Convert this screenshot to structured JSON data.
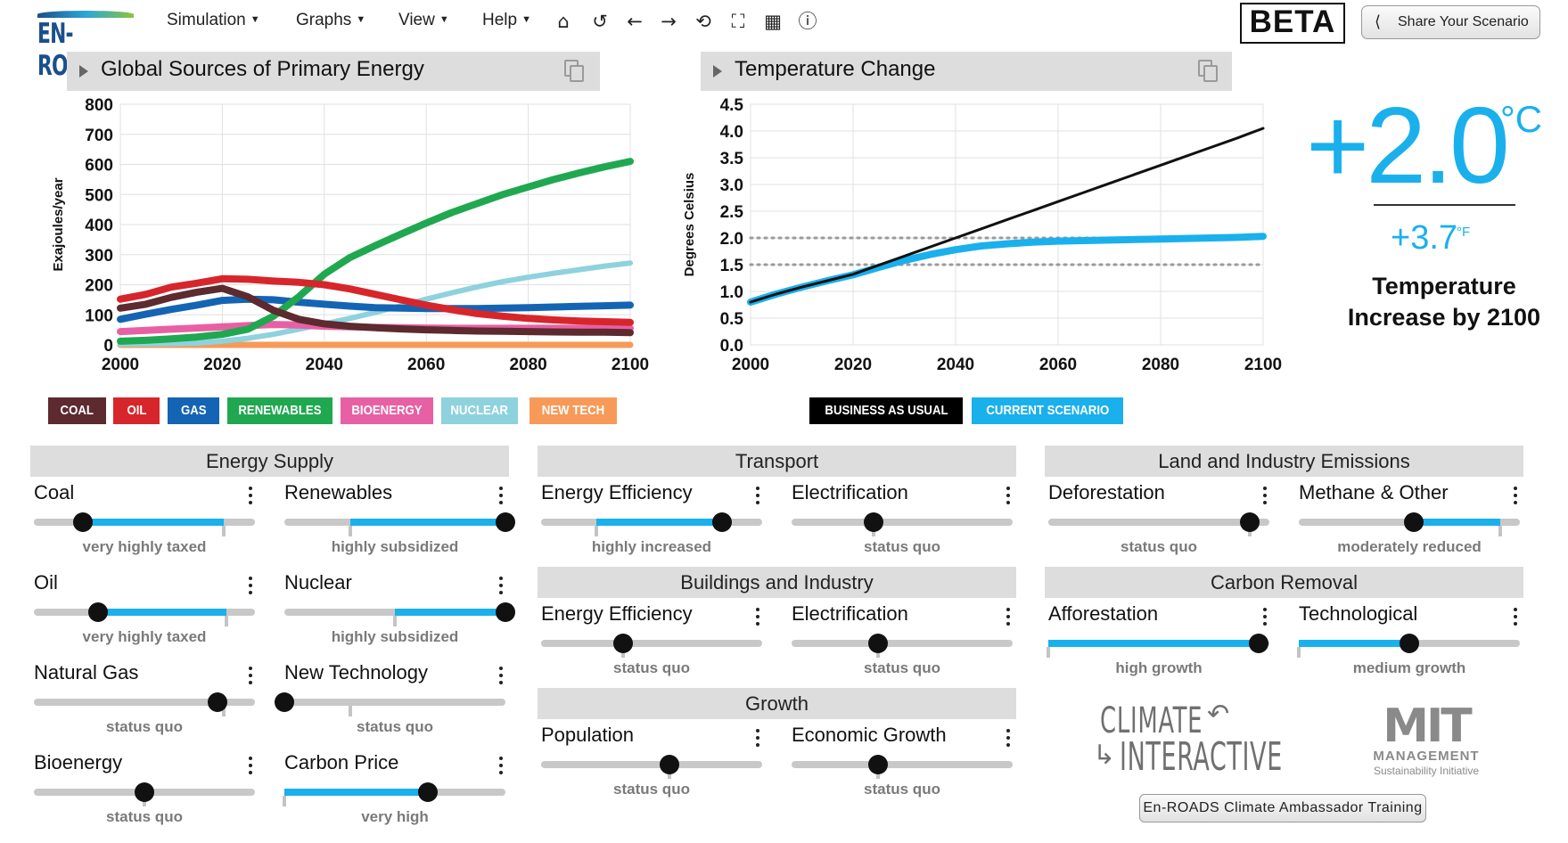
{
  "app": {
    "logo_text": "EN-ROADS",
    "beta_label": "BETA",
    "share_label": "Share Your Scenario",
    "menus": [
      {
        "label": "Simulation"
      },
      {
        "label": "Graphs"
      },
      {
        "label": "View"
      },
      {
        "label": "Help"
      }
    ],
    "toolbar_icons": [
      "home-icon",
      "undo-icon",
      "back-icon",
      "forward-icon",
      "redo-icon",
      "fullscreen-icon",
      "table-icon",
      "info-icon"
    ]
  },
  "colors": {
    "accent_blue": "#1ab0ec",
    "header_gray": "#dddddd",
    "coal": "#5c2a2f",
    "oil": "#d7262b",
    "gas": "#1464b4",
    "renewables": "#20a850",
    "bioenergy": "#e860a4",
    "nuclear": "#8ed2de",
    "new_tech": "#f79a58"
  },
  "graphs": [
    {
      "title": "Global Sources of Primary Energy"
    },
    {
      "title": "Temperature Change"
    }
  ],
  "chart_data": [
    {
      "type": "line",
      "title": "Global Sources of Primary Energy",
      "xlabel": "",
      "ylabel": "Exajoules/year",
      "xlim": [
        2000,
        2100
      ],
      "ylim": [
        0,
        800
      ],
      "xticks": [
        2000,
        2020,
        2040,
        2060,
        2080,
        2100
      ],
      "yticks": [
        0,
        100,
        200,
        300,
        400,
        500,
        600,
        700,
        800
      ],
      "grid": true,
      "x": [
        2000,
        2005,
        2010,
        2015,
        2020,
        2025,
        2030,
        2035,
        2040,
        2045,
        2050,
        2055,
        2060,
        2065,
        2070,
        2075,
        2080,
        2085,
        2090,
        2095,
        2100
      ],
      "series": [
        {
          "name": "COAL",
          "color": "#5c2a2f",
          "values": [
            122,
            135,
            158,
            175,
            188,
            160,
            115,
            85,
            70,
            62,
            57,
            53,
            50,
            48,
            46,
            45,
            44,
            43,
            42,
            42,
            41
          ]
        },
        {
          "name": "OIL",
          "color": "#d7262b",
          "values": [
            152,
            168,
            192,
            205,
            220,
            218,
            212,
            208,
            200,
            186,
            168,
            150,
            132,
            117,
            104,
            95,
            88,
            83,
            79,
            77,
            75
          ]
        },
        {
          "name": "GAS",
          "color": "#1464b4",
          "values": [
            85,
            102,
            118,
            132,
            148,
            152,
            150,
            142,
            135,
            129,
            124,
            122,
            121,
            121,
            121,
            122,
            124,
            126,
            128,
            130,
            132
          ]
        },
        {
          "name": "RENEWABLES",
          "color": "#20a850",
          "values": [
            12,
            15,
            20,
            26,
            35,
            52,
            95,
            160,
            235,
            290,
            330,
            368,
            405,
            440,
            470,
            500,
            525,
            550,
            572,
            592,
            610
          ]
        },
        {
          "name": "BIOENERGY",
          "color": "#e860a4",
          "values": [
            44,
            48,
            52,
            56,
            60,
            64,
            68,
            66,
            62,
            60,
            58,
            57,
            56,
            55,
            55,
            55,
            55,
            55,
            55,
            55,
            55
          ]
        },
        {
          "name": "NUCLEAR",
          "color": "#8ed2de",
          "values": [
            2,
            3,
            4,
            6,
            12,
            22,
            35,
            52,
            70,
            88,
            108,
            130,
            152,
            173,
            193,
            210,
            225,
            238,
            250,
            262,
            272
          ]
        },
        {
          "name": "NEW TECH",
          "color": "#f79a58",
          "values": [
            0,
            0,
            0,
            0,
            0,
            0,
            0,
            0,
            0,
            0,
            0,
            0,
            0,
            0,
            0,
            0,
            0,
            0,
            0,
            0,
            0
          ]
        }
      ],
      "legend": "bottom"
    },
    {
      "type": "line",
      "title": "Temperature Change",
      "xlabel": "",
      "ylabel": "Degrees Celsius",
      "xlim": [
        2000,
        2100
      ],
      "ylim": [
        0,
        4.5
      ],
      "xticks": [
        2000,
        2020,
        2040,
        2060,
        2080,
        2100
      ],
      "yticks": [
        0.0,
        0.5,
        1.0,
        1.5,
        2.0,
        2.5,
        3.0,
        3.5,
        4.0,
        4.5
      ],
      "grid": true,
      "reference_lines": [
        1.5,
        2.0
      ],
      "x": [
        2000,
        2005,
        2010,
        2015,
        2020,
        2025,
        2030,
        2035,
        2040,
        2045,
        2050,
        2055,
        2060,
        2065,
        2070,
        2075,
        2080,
        2085,
        2090,
        2095,
        2100
      ],
      "series": [
        {
          "name": "BUSINESS AS USUAL",
          "color": "#111111",
          "values": [
            0.8,
            0.95,
            1.08,
            1.2,
            1.32,
            1.49,
            1.66,
            1.83,
            2.0,
            2.17,
            2.34,
            2.51,
            2.68,
            2.85,
            3.02,
            3.19,
            3.36,
            3.53,
            3.7,
            3.87,
            4.05
          ]
        },
        {
          "name": "CURRENT SCENARIO",
          "color": "#1ab0ec",
          "values": [
            0.8,
            0.95,
            1.08,
            1.2,
            1.31,
            1.45,
            1.58,
            1.69,
            1.78,
            1.85,
            1.89,
            1.92,
            1.94,
            1.95,
            1.96,
            1.97,
            1.98,
            1.99,
            2.0,
            2.01,
            2.03
          ]
        }
      ],
      "legend": "bottom"
    }
  ],
  "temperature": {
    "celsius": "+2.0",
    "celsius_unit": "°C",
    "fahrenheit": "+3.7",
    "fahrenheit_unit": "°F",
    "caption": "Temperature Increase by 2100"
  },
  "panels": [
    {
      "title": "Energy Supply"
    },
    {
      "title": "Transport"
    },
    {
      "title": "Land and Industry Emissions"
    },
    {
      "title": "Buildings and Industry"
    },
    {
      "title": "Carbon Removal"
    },
    {
      "title": "Growth"
    }
  ],
  "controls": [
    {
      "label": "Coal",
      "status": "very highly taxed",
      "level": 0.22,
      "fill_from": 0.22,
      "fill_to": 0.86,
      "default": 0.86
    },
    {
      "label": "Renewables",
      "status": "highly subsidized",
      "level": 1.0,
      "fill_from": 0.3,
      "fill_to": 1.0,
      "default": 0.3
    },
    {
      "label": "Oil",
      "status": "very highly taxed",
      "level": 0.29,
      "fill_from": 0.29,
      "fill_to": 0.87,
      "default": 0.87
    },
    {
      "label": "Nuclear",
      "status": "highly subsidized",
      "level": 1.0,
      "fill_from": 0.5,
      "fill_to": 1.0,
      "default": 0.5
    },
    {
      "label": "Natural Gas",
      "status": "status quo",
      "level": 0.83,
      "fill_from": 0.83,
      "fill_to": 0.83,
      "default": 0.86
    },
    {
      "label": "New Technology",
      "status": "status quo",
      "level": 0.0,
      "fill_from": 0.0,
      "fill_to": 0.0,
      "default": 0.3
    },
    {
      "label": "Bioenergy",
      "status": "status quo",
      "level": 0.5,
      "fill_from": 0.5,
      "fill_to": 0.5,
      "default": 0.5
    },
    {
      "label": "Carbon Price",
      "status": "very high",
      "level": 0.65,
      "fill_from": 0.0,
      "fill_to": 0.65,
      "default": 0.0
    },
    {
      "label": "Energy Efficiency",
      "status": "highly increased",
      "level": 0.82,
      "fill_from": 0.25,
      "fill_to": 0.82,
      "default": 0.25
    },
    {
      "label": "Electrification",
      "status": "status quo",
      "level": 0.37,
      "fill_from": 0.37,
      "fill_to": 0.37,
      "default": 0.37
    },
    {
      "label": "Deforestation",
      "status": "status quo",
      "level": 0.91,
      "fill_from": 0.91,
      "fill_to": 0.91,
      "default": 0.91
    },
    {
      "label": "Methane & Other",
      "status": "moderately reduced",
      "level": 0.52,
      "fill_from": 0.52,
      "fill_to": 0.91,
      "default": 0.91
    },
    {
      "label": "Energy Efficiency",
      "status": "status quo",
      "level": 0.37,
      "fill_from": 0.37,
      "fill_to": 0.37,
      "default": 0.37
    },
    {
      "label": "Electrification",
      "status": "status quo",
      "level": 0.39,
      "fill_from": 0.39,
      "fill_to": 0.39,
      "default": 0.39
    },
    {
      "label": "Afforestation",
      "status": "high growth",
      "level": 0.95,
      "fill_from": 0.0,
      "fill_to": 0.95,
      "default": 0.0
    },
    {
      "label": "Technological",
      "status": "medium growth",
      "level": 0.5,
      "fill_from": 0.0,
      "fill_to": 0.5,
      "default": 0.0
    },
    {
      "label": "Population",
      "status": "status quo",
      "level": 0.58,
      "fill_from": 0.58,
      "fill_to": 0.58,
      "default": 0.58
    },
    {
      "label": "Economic Growth",
      "status": "status quo",
      "level": 0.39,
      "fill_from": 0.39,
      "fill_to": 0.39,
      "default": 0.39
    }
  ],
  "logos": {
    "climate_interactive_line1": "CLIMATE",
    "climate_interactive_line2": "INTERACTIVE",
    "mit_line1": "MIT",
    "mit_line2": "MANAGEMENT",
    "mit_line3": "Sustainability Initiative"
  },
  "training_label": "En-ROADS Climate Ambassador Training"
}
